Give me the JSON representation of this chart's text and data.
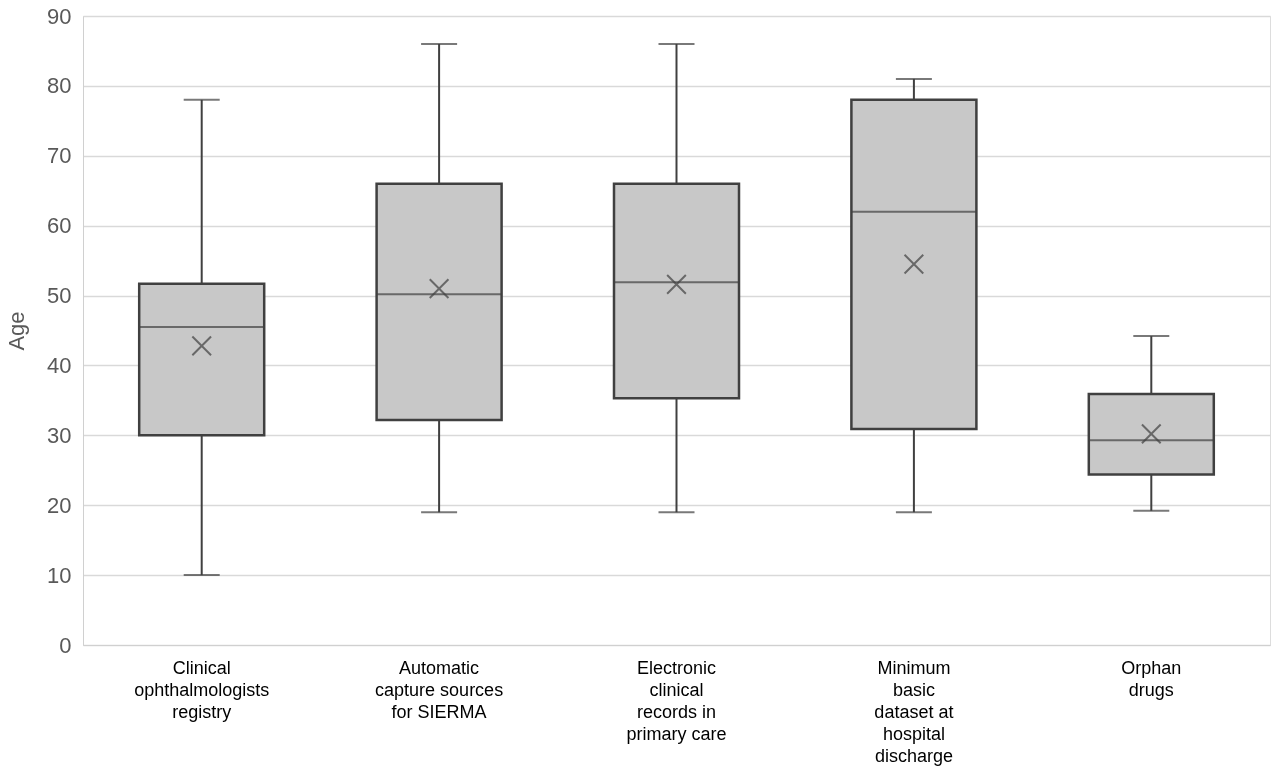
{
  "chart_data": {
    "type": "box",
    "ylabel": "Age",
    "categories": [
      "Clinical\nophthalmologists\nregistry",
      "Automatic\ncapture sources\nfor SIERMA",
      "Electronic\nclinical\nrecords in\nprimary care",
      "Minimum\nbasic\ndataset at\nhospital\ndischarge",
      "Orphan\ndrugs"
    ],
    "boxes": [
      {
        "low": 10,
        "q1": 30,
        "median": 45.5,
        "q3": 51.7,
        "high": 78,
        "mean": 42.8
      },
      {
        "low": 19,
        "q1": 32.2,
        "median": 50.2,
        "q3": 66,
        "high": 86,
        "mean": 51
      },
      {
        "low": 19,
        "q1": 35.3,
        "median": 51.9,
        "q3": 66,
        "high": 86,
        "mean": 51.6
      },
      {
        "low": 19,
        "q1": 30.9,
        "median": 62,
        "q3": 78,
        "high": 81,
        "mean": 54.5
      },
      {
        "low": 19.2,
        "q1": 24.4,
        "median": 29.3,
        "q3": 35.9,
        "high": 44.2,
        "mean": 30.2
      }
    ],
    "color": "#c8c8c8",
    "ylim": [
      0,
      90
    ],
    "yticks": [
      0,
      10,
      20,
      30,
      40,
      50,
      60,
      70,
      80,
      90
    ],
    "grid": "y"
  }
}
